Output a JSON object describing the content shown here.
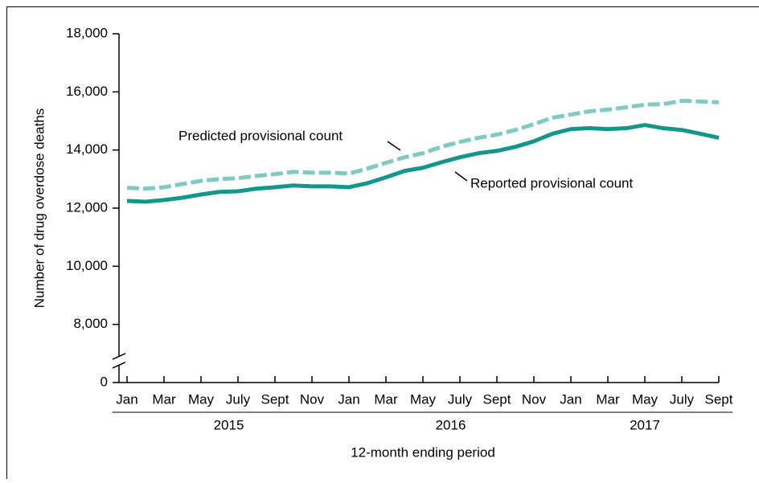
{
  "chart_data": {
    "type": "line",
    "y_label": "Number of drug overdose deaths",
    "x_label": "12-month ending period",
    "categories": [
      "Jan",
      null,
      "Mar",
      null,
      "May",
      null,
      "July",
      null,
      "Sept",
      null,
      "Nov",
      null,
      "Jan",
      null,
      "Mar",
      null,
      "May",
      null,
      "July",
      null,
      "Sept",
      null,
      "Nov",
      null,
      "Jan",
      null,
      "Mar",
      null,
      "May",
      null,
      "July",
      null,
      "Sept"
    ],
    "groups": [
      "2015",
      "2016",
      "2017"
    ],
    "ylim": [
      0,
      18000
    ],
    "yticks": [
      0,
      {
        "value": 8000,
        "label": "8,000"
      },
      {
        "value": 10000,
        "label": "10,000"
      },
      {
        "value": 12000,
        "label": "12,000"
      },
      {
        "value": 14000,
        "label": "14,000"
      },
      {
        "value": 16000,
        "label": "16,000"
      },
      {
        "value": 18000,
        "label": "18,000"
      }
    ],
    "axis_break": true,
    "series": [
      {
        "name": "Predicted provisional count",
        "color": "#7fcac3",
        "dashed": true,
        "values": [
          12700,
          12670,
          12720,
          12830,
          12940,
          13000,
          13030,
          13110,
          13170,
          13250,
          13220,
          13220,
          13190,
          13360,
          13560,
          13750,
          13890,
          14110,
          14280,
          14420,
          14530,
          14690,
          14890,
          15110,
          15220,
          15330,
          15390,
          15470,
          15560,
          15580,
          15690,
          15670,
          15640
        ]
      },
      {
        "name": "Reported provisional count",
        "color": "#12978a",
        "dashed": false,
        "values": [
          12250,
          12220,
          12280,
          12360,
          12470,
          12560,
          12580,
          12670,
          12720,
          12780,
          12750,
          12750,
          12720,
          12860,
          13060,
          13280,
          13390,
          13580,
          13750,
          13890,
          13970,
          14110,
          14300,
          14560,
          14720,
          14750,
          14720,
          14750,
          14860,
          14750,
          14690,
          14560,
          14420
        ]
      }
    ]
  }
}
